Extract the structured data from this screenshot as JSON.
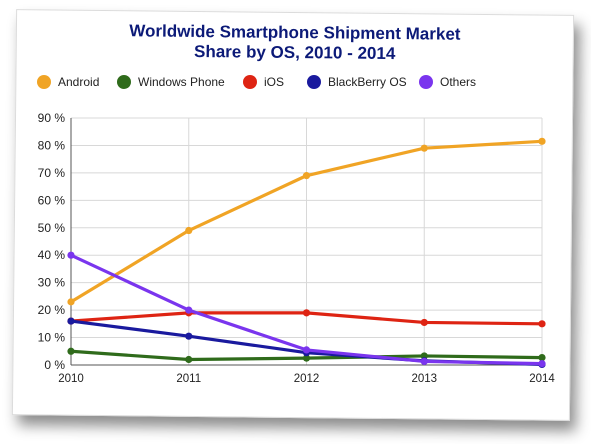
{
  "chart_data": {
    "type": "line",
    "title_lines": [
      "Worldwide Smartphone Shipment Market",
      "Share by OS, 2010 - 2014"
    ],
    "title": "Worldwide Smartphone Shipment Market Share by OS, 2010 - 2014",
    "xlabel": "",
    "ylabel": "",
    "categories": [
      "2010",
      "2011",
      "2012",
      "2013",
      "2014"
    ],
    "ylim": [
      0,
      90
    ],
    "y_ticks": [
      0,
      10,
      20,
      30,
      40,
      50,
      60,
      70,
      80,
      90
    ],
    "y_tick_suffix": " %",
    "grid": true,
    "legend_position": "top",
    "series": [
      {
        "name": "Android",
        "color": "#f0a425",
        "values": [
          23,
          49,
          69,
          79,
          81.5
        ]
      },
      {
        "name": "Windows Phone",
        "color": "#2f6b1b",
        "values": [
          5,
          2,
          2.5,
          3.3,
          2.7
        ]
      },
      {
        "name": "iOS",
        "color": "#de2413",
        "values": [
          16,
          19,
          19,
          15.5,
          15
        ]
      },
      {
        "name": "BlackBerry OS",
        "color": "#1a1a9e",
        "values": [
          16,
          10.5,
          4.5,
          1.5,
          0.2
        ]
      },
      {
        "name": "Others",
        "color": "#7a35ee",
        "values": [
          40,
          20,
          5.5,
          1.3,
          0.5
        ]
      }
    ]
  }
}
